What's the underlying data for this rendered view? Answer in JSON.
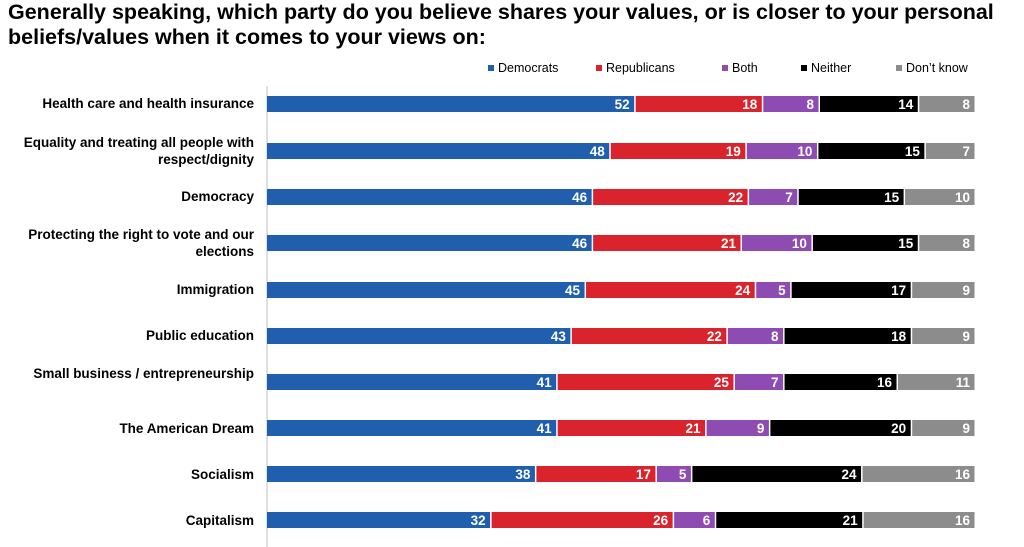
{
  "title": "Generally speaking, which party do you believe shares your values, or is closer to your personal beliefs/values when it comes to your views on:",
  "chart_data": {
    "type": "bar",
    "orientation": "horizontal",
    "stacked": true,
    "title": "Generally speaking, which party do you believe shares your values, or is closer to your personal beliefs/values when it comes to your views on:",
    "xlim": [
      0,
      100
    ],
    "legend_position": "top-right",
    "categories": [
      "Health care and health insurance",
      "Equality and treating all people with respect/dignity",
      "Democracy",
      "Protecting the right to vote and our elections",
      "Immigration",
      "Public education",
      "Small business / entrepreneurship",
      "The American Dream",
      "Socialism",
      "Capitalism"
    ],
    "series": [
      {
        "name": "Democrats",
        "color": "#1f5fad",
        "values": [
          52,
          48,
          46,
          46,
          45,
          43,
          41,
          41,
          38,
          32
        ]
      },
      {
        "name": "Republicans",
        "color": "#d9232d",
        "values": [
          18,
          19,
          22,
          21,
          24,
          22,
          25,
          21,
          17,
          26
        ]
      },
      {
        "name": "Both",
        "color": "#8e4bb2",
        "values": [
          8,
          10,
          7,
          10,
          5,
          8,
          7,
          9,
          5,
          6
        ]
      },
      {
        "name": "Neither",
        "color": "#000000",
        "values": [
          14,
          15,
          15,
          15,
          17,
          18,
          16,
          20,
          24,
          21
        ]
      },
      {
        "name": "Don’t know",
        "color": "#8c8c8c",
        "values": [
          8,
          7,
          10,
          8,
          9,
          9,
          11,
          9,
          16,
          16
        ]
      }
    ]
  }
}
